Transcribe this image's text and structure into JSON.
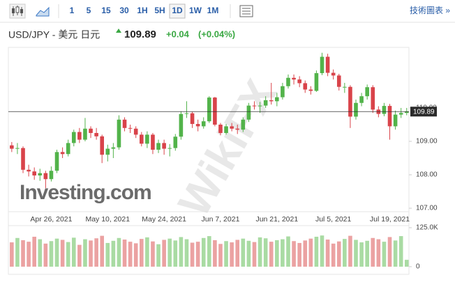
{
  "toolbar": {
    "intervals": [
      "1",
      "5",
      "15",
      "30",
      "1H",
      "5H",
      "1D",
      "1W",
      "1M"
    ],
    "selected_index": 6,
    "link": "技術圖表 »"
  },
  "chart_data": {
    "type": "candlestick",
    "title": "USD/JPY - 美元 日元",
    "last_price": 109.89,
    "change": "+0.04",
    "change_pct": "(+0.04%)",
    "watermark": "Investing.com",
    "watermark2": "WikiFX",
    "up_color": "#52b34a",
    "down_color": "#d9434a",
    "categories": [
      null,
      null,
      null,
      null,
      null,
      null,
      null,
      "Apr 26, 2021",
      null,
      null,
      null,
      null,
      null,
      null,
      null,
      null,
      null,
      "May 10, 2021",
      null,
      null,
      null,
      null,
      null,
      null,
      null,
      null,
      null,
      "May 24, 2021",
      null,
      null,
      null,
      null,
      null,
      null,
      null,
      null,
      null,
      "Jun 7, 2021",
      null,
      null,
      null,
      null,
      null,
      null,
      null,
      null,
      null,
      "Jun 21, 2021",
      null,
      null,
      null,
      null,
      null,
      null,
      null,
      null,
      null,
      "Jul 5, 2021",
      null,
      null,
      null,
      null,
      null,
      null,
      null,
      null,
      null,
      "Jul 19, 2021",
      null,
      null,
      null
    ],
    "open": [
      108.88,
      108.78,
      108.8,
      108.15,
      108.1,
      107.98,
      108.05,
      107.87,
      108.12,
      108.68,
      108.62,
      108.95,
      109.28,
      109.05,
      109.38,
      109.25,
      109.15,
      108.6,
      108.78,
      108.82,
      109.65,
      109.4,
      109.38,
      109.2,
      108.93,
      109.2,
      108.75,
      108.95,
      108.78,
      108.8,
      109.14,
      109.82,
      109.84,
      109.52,
      109.45,
      109.6,
      110.31,
      109.5,
      109.25,
      109.45,
      109.38,
      109.35,
      109.65,
      110.07,
      110.06,
      110.07,
      110.23,
      110.2,
      110.32,
      110.65,
      110.9,
      110.85,
      110.74,
      110.55,
      110.51,
      111.04,
      111.53,
      111.05,
      110.97,
      110.63,
      110.63,
      109.74,
      110.15,
      110.35,
      110.62,
      109.95,
      109.82,
      110.06,
      109.45,
      109.8,
      109.85
    ],
    "high": [
      108.98,
      108.95,
      108.85,
      108.3,
      108.22,
      108.18,
      108.12,
      108.25,
      108.75,
      108.82,
      109.05,
      109.35,
      109.4,
      109.7,
      109.45,
      109.4,
      109.2,
      108.9,
      108.95,
      109.78,
      109.72,
      109.5,
      109.45,
      109.28,
      109.3,
      109.25,
      109.05,
      109.05,
      108.92,
      109.22,
      109.9,
      110.2,
      109.88,
      109.65,
      109.72,
      110.35,
      110.33,
      109.55,
      109.52,
      109.55,
      109.5,
      109.72,
      110.15,
      110.2,
      110.18,
      110.35,
      110.75,
      110.45,
      110.75,
      111.0,
      111.0,
      110.95,
      110.82,
      110.65,
      111.12,
      111.65,
      111.62,
      111.15,
      111.02,
      110.75,
      110.68,
      110.25,
      110.45,
      110.7,
      110.68,
      110.05,
      110.15,
      110.12,
      109.92,
      110.0,
      110.0
    ],
    "low": [
      108.68,
      108.62,
      108.05,
      107.95,
      107.85,
      107.82,
      107.6,
      107.8,
      108.05,
      108.5,
      108.55,
      108.85,
      108.95,
      109.0,
      109.1,
      109.05,
      108.35,
      108.4,
      108.5,
      108.75,
      109.3,
      109.25,
      109.1,
      108.85,
      108.8,
      108.62,
      108.65,
      108.6,
      108.55,
      108.72,
      109.05,
      109.7,
      109.4,
      109.3,
      109.38,
      109.55,
      109.45,
      109.18,
      109.2,
      109.3,
      109.22,
      109.28,
      109.58,
      109.95,
      109.85,
      110.0,
      110.1,
      110.05,
      110.25,
      110.58,
      110.7,
      110.62,
      110.45,
      110.4,
      110.48,
      110.98,
      110.95,
      110.85,
      110.52,
      110.45,
      109.4,
      109.65,
      110.05,
      110.25,
      109.85,
      109.72,
      109.75,
      109.05,
      109.35,
      109.7,
      109.78
    ],
    "close": [
      108.78,
      108.8,
      108.15,
      108.1,
      107.98,
      108.05,
      107.87,
      108.12,
      108.68,
      108.62,
      108.95,
      109.28,
      109.05,
      109.38,
      109.25,
      109.15,
      108.6,
      108.78,
      108.82,
      109.65,
      109.4,
      109.38,
      109.2,
      108.93,
      109.2,
      108.75,
      108.95,
      108.78,
      108.8,
      109.14,
      109.82,
      109.84,
      109.52,
      109.45,
      109.6,
      110.31,
      109.5,
      109.25,
      109.45,
      109.38,
      109.35,
      109.65,
      110.07,
      110.06,
      110.07,
      110.23,
      110.2,
      110.32,
      110.65,
      110.9,
      110.85,
      110.74,
      110.55,
      110.51,
      111.04,
      111.53,
      111.05,
      110.97,
      110.63,
      110.63,
      109.74,
      110.15,
      110.35,
      110.62,
      109.95,
      109.82,
      110.06,
      109.45,
      109.8,
      109.85,
      109.89
    ],
    "ylim": [
      106.98,
      111.77
    ],
    "yticks": [
      {
        "value": 107,
        "label": "107.00"
      },
      {
        "value": 108,
        "label": "108.00"
      },
      {
        "value": 109,
        "label": "109.00"
      },
      {
        "value": 110,
        "label": "110.00"
      }
    ],
    "volume": {
      "values": [
        78000,
        92000,
        85000,
        80000,
        96000,
        88000,
        74000,
        82000,
        90000,
        86000,
        79000,
        93000,
        70000,
        88000,
        84000,
        91000,
        99000,
        76000,
        83000,
        92000,
        87000,
        80000,
        75000,
        89000,
        94000,
        81000,
        72000,
        86000,
        90000,
        84000,
        95000,
        88000,
        77000,
        80000,
        92000,
        98000,
        85000,
        73000,
        82000,
        78000,
        86000,
        90000,
        83000,
        79000,
        94000,
        91000,
        80000,
        85000,
        88000,
        97000,
        82000,
        76000,
        84000,
        90000,
        96000,
        100000,
        87000,
        74000,
        81000,
        89000,
        99000,
        86000,
        78000,
        83000,
        92000,
        88000,
        80000,
        95000,
        84000,
        98000,
        22000
      ],
      "up_color": "#a9dba3",
      "down_color": "#eba2a2",
      "ylim": [
        0,
        125000
      ],
      "yticks": [
        {
          "value": 0,
          "label": "0"
        },
        {
          "value": 125000,
          "label": "125.0K"
        }
      ]
    }
  }
}
